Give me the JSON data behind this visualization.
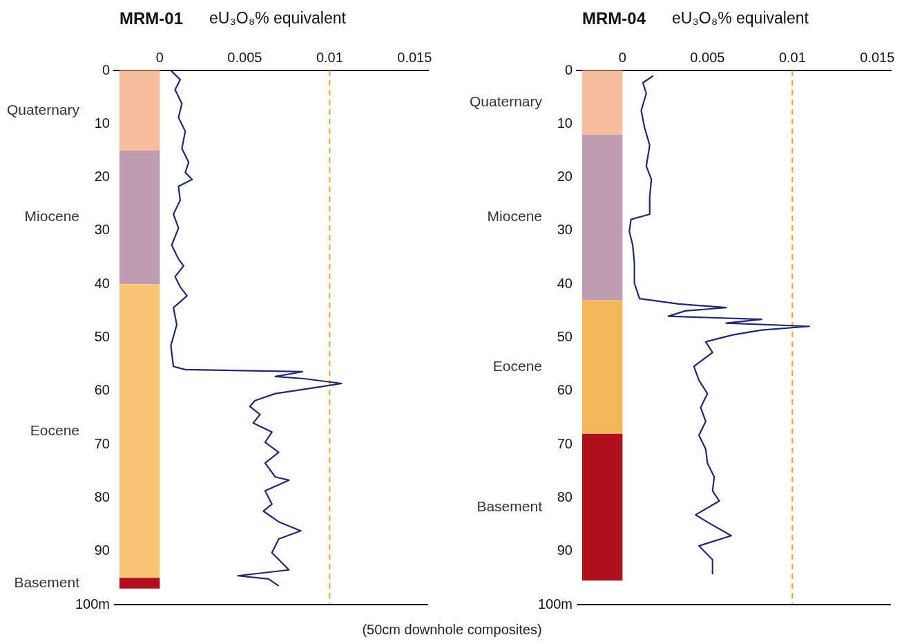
{
  "chart_data": [
    {
      "type": "line",
      "title": "MRM-01",
      "xlabel": "eU₃O₈% equivalent",
      "xlim": [
        -0.0027,
        0.0158
      ],
      "xticks": [
        0,
        0.005,
        0.01,
        0.015
      ],
      "ylim": [
        100,
        0
      ],
      "yticks": [
        0,
        10,
        20,
        30,
        40,
        50,
        60,
        70,
        80,
        90,
        {
          "value": 100,
          "label": "100m"
        }
      ],
      "grid": false,
      "legend": false,
      "marker": "none",
      "annotations": [
        "(50cm downhole composites)"
      ],
      "bands": [
        {
          "axis": "y",
          "from": 0,
          "to": 15,
          "label": "Quaternary",
          "color": "#f8bc9e"
        },
        {
          "axis": "y",
          "from": 15,
          "to": 40,
          "label": "Miocene",
          "color": "#c09cb0"
        },
        {
          "axis": "y",
          "from": 40,
          "to": 95,
          "label": "Eocene",
          "color": "#f9c476"
        },
        {
          "axis": "y",
          "from": 95,
          "to": 97,
          "label": "Basement",
          "color": "#b0101c"
        }
      ],
      "ref_lines": [
        {
          "axis": "x",
          "value": 0.01,
          "color": "#f5a21e",
          "line_style": "dashed"
        }
      ],
      "series": [
        {
          "color": "#1f2a6e",
          "line_style": "solid",
          "x": [
            0.00065,
            0.0012,
            0.0009,
            0.0013,
            0.0011,
            0.0015,
            0.0013,
            0.0017,
            0.0015,
            0.0019,
            0.0011,
            0.0012,
            0.0008,
            0.0011,
            0.0007,
            0.0011,
            0.0014,
            0.0009,
            0.0012,
            0.0016,
            0.0008,
            0.001,
            0.00065,
            0.0008,
            0.0015,
            0.0084,
            0.0068,
            0.0085,
            0.0107,
            0.0093,
            0.0068,
            0.0056,
            0.0053,
            0.0059,
            0.0055,
            0.0066,
            0.0062,
            0.007,
            0.0062,
            0.0068,
            0.0076,
            0.0062,
            0.0066,
            0.0061,
            0.007,
            0.0083,
            0.007,
            0.0066,
            0.0072,
            0.0076,
            0.0046,
            0.0064,
            0.007
          ],
          "values": [
            0,
            1.7,
            3.6,
            6.2,
            8.8,
            11.4,
            14.6,
            17.2,
            19.1,
            20.4,
            21.7,
            24.3,
            26.9,
            29.5,
            32.7,
            35.3,
            36.6,
            38.6,
            40.5,
            42.2,
            44.4,
            47.6,
            51.5,
            55.4,
            56,
            56.4,
            57.3,
            57.7,
            58.6,
            59.3,
            60.5,
            61.8,
            62.9,
            64.4,
            66,
            67.7,
            69.6,
            71.5,
            73.5,
            76.1,
            76.7,
            78.7,
            81.2,
            82.5,
            84.5,
            86.2,
            87.7,
            90.3,
            92.2,
            93.5,
            94.6,
            95.2,
            96.5
          ]
        }
      ]
    },
    {
      "type": "line",
      "title": "MRM-04",
      "xlabel": "eU₃O₈% equivalent",
      "xlim": [
        -0.0027,
        0.0158
      ],
      "xticks": [
        0,
        0.005,
        0.01,
        0.015
      ],
      "ylim": [
        100,
        0
      ],
      "yticks": [
        0,
        10,
        20,
        30,
        40,
        50,
        60,
        70,
        80,
        90,
        {
          "value": 100,
          "label": "100m"
        }
      ],
      "grid": false,
      "legend": false,
      "marker": "none",
      "bands": [
        {
          "axis": "y",
          "from": 0,
          "to": 12,
          "label": "Quaternary",
          "color": "#f8bc9e"
        },
        {
          "axis": "y",
          "from": 12,
          "to": 43,
          "label": "Miocene",
          "color": "#c09cb0"
        },
        {
          "axis": "y",
          "from": 43,
          "to": 68,
          "label": "Eocene",
          "color": "#f6b65a"
        },
        {
          "axis": "y",
          "from": 68,
          "to": 95.5,
          "label": "Basement",
          "color": "#b0101c"
        }
      ],
      "ref_lines": [
        {
          "axis": "x",
          "value": 0.01,
          "color": "#f5a21e",
          "line_style": "dashed"
        }
      ],
      "series": [
        {
          "color": "#1f2a6e",
          "line_style": "solid",
          "x": [
            0.0018,
            0.0012,
            0.0014,
            0.0011,
            0.0013,
            0.0016,
            0.0014,
            0.0017,
            0.0016,
            0.0016,
            0.0005,
            0.0004,
            0.0006,
            0.0007,
            0.0007,
            0.001,
            0.0033,
            0.0061,
            0.0037,
            0.0027,
            0.0082,
            0.0061,
            0.011,
            0.0082,
            0.0065,
            0.0049,
            0.0053,
            0.0042,
            0.0045,
            0.005,
            0.0046,
            0.0049,
            0.0045,
            0.0049,
            0.005,
            0.0054,
            0.0053,
            0.0057,
            0.0043,
            0.0053,
            0.0064,
            0.0045,
            0.0053,
            0.0053
          ],
          "values": [
            1,
            2.3,
            4.3,
            7.5,
            10.7,
            14,
            17.9,
            20.4,
            23.7,
            26.9,
            27.9,
            30.1,
            32.7,
            36,
            39.8,
            42.7,
            43.7,
            44.4,
            45,
            46,
            46.6,
            47.3,
            47.9,
            48.6,
            49.5,
            50.8,
            52.8,
            55.4,
            58,
            60.5,
            63.1,
            65.7,
            68.3,
            70.9,
            73.5,
            76.1,
            78.7,
            80.6,
            83.2,
            85.1,
            87.1,
            89,
            91.6,
            94.2
          ]
        }
      ]
    }
  ]
}
